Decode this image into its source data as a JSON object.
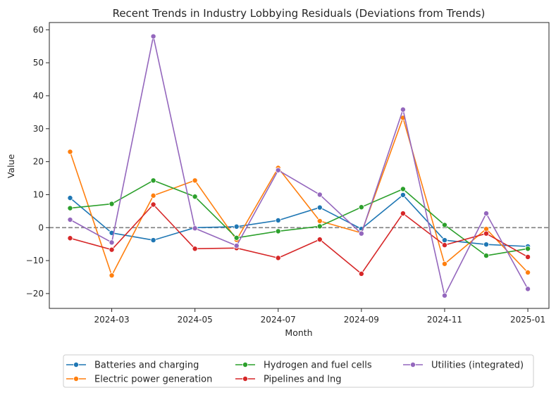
{
  "chart_data": {
    "type": "line",
    "title": "Recent Trends in Industry Lobbying Residuals (Deviations from Trends)",
    "xlabel": "Month",
    "ylabel": "Value",
    "x": [
      "2024-02",
      "2024-03",
      "2024-04",
      "2024-05",
      "2024-06",
      "2024-07",
      "2024-08",
      "2024-09",
      "2024-10",
      "2024-11",
      "2024-12",
      "2025-01"
    ],
    "x_ticks": [
      "2024-03",
      "2024-05",
      "2024-07",
      "2024-09",
      "2024-11",
      "2025-01"
    ],
    "y_ticks": [
      -20,
      -10,
      0,
      10,
      20,
      30,
      40,
      50,
      60
    ],
    "ylim": [
      -24.5,
      62.2
    ],
    "reference_line": {
      "y": 0,
      "style": "dashed",
      "color": "#808080"
    },
    "grid": false,
    "legend_position": "below-center",
    "series": [
      {
        "name": "Batteries and charging",
        "color": "#1f77b4",
        "values": [
          9.0,
          -1.6,
          -3.8,
          0.0,
          0.3,
          2.2,
          6.1,
          -0.4,
          9.9,
          -3.8,
          -5.1,
          -5.7
        ]
      },
      {
        "name": "Electric power generation",
        "color": "#ff7f0e",
        "values": [
          23.0,
          -14.5,
          9.7,
          14.3,
          -3.7,
          18.1,
          2.0,
          -1.6,
          33.3,
          -11.0,
          -0.4,
          -13.6
        ]
      },
      {
        "name": "Hydrogen and fuel cells",
        "color": "#2ca02c",
        "values": [
          5.9,
          7.2,
          14.3,
          9.4,
          -3.1,
          -1.1,
          0.4,
          6.2,
          11.7,
          0.8,
          -8.5,
          -6.4
        ]
      },
      {
        "name": "Pipelines and lng",
        "color": "#d62728",
        "values": [
          -3.2,
          -6.7,
          7.0,
          -6.4,
          -6.2,
          -9.2,
          -3.6,
          -14.0,
          4.3,
          -5.3,
          -1.8,
          -8.9
        ]
      },
      {
        "name": "Utilities (integrated)",
        "color": "#9467bd",
        "values": [
          2.4,
          -4.5,
          58.0,
          -0.2,
          -5.5,
          17.4,
          10.0,
          -1.8,
          35.8,
          -20.6,
          4.3,
          -18.6
        ]
      }
    ]
  }
}
